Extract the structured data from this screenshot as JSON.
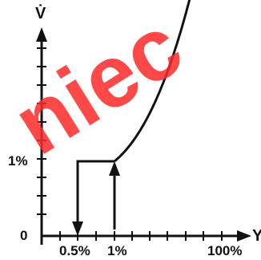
{
  "watermark": {
    "text": "niec"
  },
  "chart_data": {
    "type": "line",
    "title": "",
    "xlabel": "Y",
    "ylabel": "V̇",
    "x_tick_labels": [
      {
        "x": 0.5,
        "label": "0.5%"
      },
      {
        "x": 1,
        "label": "1%"
      },
      {
        "x": 100,
        "label": "100%"
      }
    ],
    "y_tick_labels": [
      {
        "y": 0,
        "label": "0"
      },
      {
        "y": 1,
        "label": "1%"
      }
    ],
    "curve": {
      "x": [
        1,
        35,
        70,
        100
      ],
      "y": [
        1,
        1.4,
        2.6,
        5.3
      ]
    },
    "hysteresis_path": {
      "x": [
        1,
        0.5,
        0.5
      ],
      "y": [
        1,
        1,
        0
      ]
    },
    "up_arrow": {
      "x": 1,
      "y": [
        0,
        1
      ]
    },
    "grid": false,
    "colors": {
      "line": "#111111",
      "watermark": "#ff2a2a"
    }
  }
}
